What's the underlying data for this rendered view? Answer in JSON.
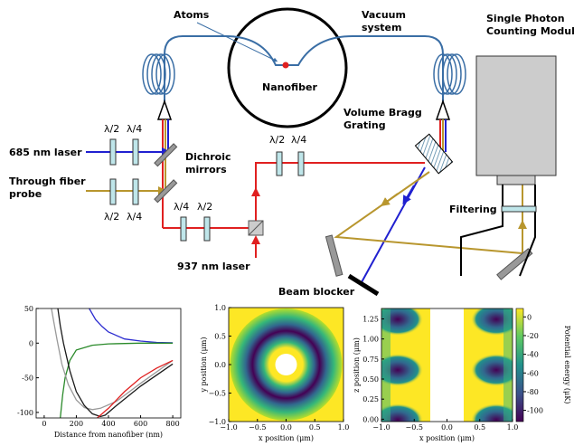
{
  "diagram": {
    "labels": {
      "atoms": "Atoms",
      "vacuum_1": "Vacuum",
      "vacuum_2": "system",
      "nanofiber": "Nanofiber",
      "spcm_1": "Single Photon",
      "spcm_2": "Counting Module",
      "laser_685": "685 nm laser",
      "probe_1": "Through fiber",
      "probe_2": "probe",
      "dichroic_1": "Dichroic",
      "dichroic_2": "mirrors",
      "vbg_1": "Volume Bragg",
      "vbg_2": "Grating",
      "filtering": "Filtering",
      "laser_937": "937 nm laser",
      "beam_blocker": "Beam blocker"
    },
    "waveplates": [
      "λ/2",
      "λ/4",
      "λ/2",
      "λ/4",
      "λ/2",
      "λ/4",
      "λ/4",
      "λ/2"
    ]
  },
  "plots": [
    {
      "type": "line",
      "xlabel": "Distance from nanofiber (nm)",
      "xlim": [
        -50,
        850
      ],
      "ylim": [
        -108,
        50
      ],
      "xticks": [
        0,
        200,
        400,
        600,
        800
      ],
      "yticks": [
        50,
        0,
        -50,
        -100
      ],
      "series": [
        {
          "color": "#2b2bd0",
          "x": [
            280,
            320,
            360,
            400,
            500,
            600,
            700,
            800
          ],
          "values": [
            50,
            34,
            24,
            16,
            6,
            3,
            1,
            0.5
          ]
        },
        {
          "color": "#2a8a2a",
          "x": [
            100,
            115,
            130,
            160,
            200,
            300,
            400,
            600,
            800
          ],
          "values": [
            -108,
            -75,
            -50,
            -25,
            -10,
            -3,
            -1,
            0,
            0
          ]
        },
        {
          "color": "#9a9a9a",
          "x": [
            45,
            60,
            80,
            110,
            150,
            200,
            250,
            300,
            350,
            450,
            600,
            800
          ],
          "values": [
            50,
            30,
            5,
            -30,
            -60,
            -82,
            -93,
            -96,
            -94,
            -84,
            -58,
            -25
          ]
        },
        {
          "color": "#1a1a1a",
          "x": [
            85,
            100,
            120,
            160,
            200,
            250,
            300,
            350,
            380,
            450,
            600,
            800
          ],
          "values": [
            50,
            25,
            0,
            -40,
            -70,
            -90,
            -102,
            -106,
            -104,
            -90,
            -62,
            -30
          ]
        },
        {
          "color": "#e02020",
          "x": [
            330,
            360,
            400,
            450,
            500,
            600,
            700,
            800
          ],
          "values": [
            -108,
            -102,
            -94,
            -82,
            -70,
            -50,
            -36,
            -25
          ]
        }
      ]
    },
    {
      "type": "heatmap",
      "xlabel": "x position (μm)",
      "ylabel": "y position (μm)",
      "xlim": [
        -1,
        1
      ],
      "ylim": [
        -1,
        1
      ],
      "xticks": [
        {
          "value": -1,
          "label": "−1.0"
        },
        {
          "value": -0.5,
          "label": "−0.5"
        },
        {
          "value": 0,
          "label": "0.0"
        },
        {
          "value": 0.5,
          "label": "0.5"
        },
        {
          "value": 1,
          "label": "1.0"
        }
      ],
      "yticks": [
        {
          "value": -1,
          "label": "−1.0"
        },
        {
          "value": -0.5,
          "label": "−0.5"
        },
        {
          "value": 0,
          "label": "0.0"
        },
        {
          "value": 0.5,
          "label": "0.5"
        },
        {
          "value": 1,
          "label": "1.0"
        }
      ]
    },
    {
      "type": "heatmap",
      "xlabel": "x position (μm)",
      "ylabel": "z position (μm)",
      "xlim": [
        -1,
        1
      ],
      "ylim": [
        -0.03,
        1.38
      ],
      "xticks": [
        {
          "value": -1,
          "label": "−1.0"
        },
        {
          "value": -0.5,
          "label": "−0.5"
        },
        {
          "value": 0,
          "label": "0.0"
        },
        {
          "value": 0.5,
          "label": "0.5"
        },
        {
          "value": 1,
          "label": "1.0"
        }
      ],
      "yticks": [
        {
          "value": 0,
          "label": "0.00"
        },
        {
          "value": 0.25,
          "label": "0.25"
        },
        {
          "value": 0.5,
          "label": "0.50"
        },
        {
          "value": 0.75,
          "label": "0.75"
        },
        {
          "value": 1,
          "label": "1.00"
        },
        {
          "value": 1.25,
          "label": "1.25"
        }
      ],
      "colorbar": {
        "label": "Potential energy (μK)",
        "lim": [
          -112,
          9
        ],
        "ticks": [
          0,
          -20,
          -40,
          -60,
          -80,
          -100
        ]
      }
    }
  ]
}
